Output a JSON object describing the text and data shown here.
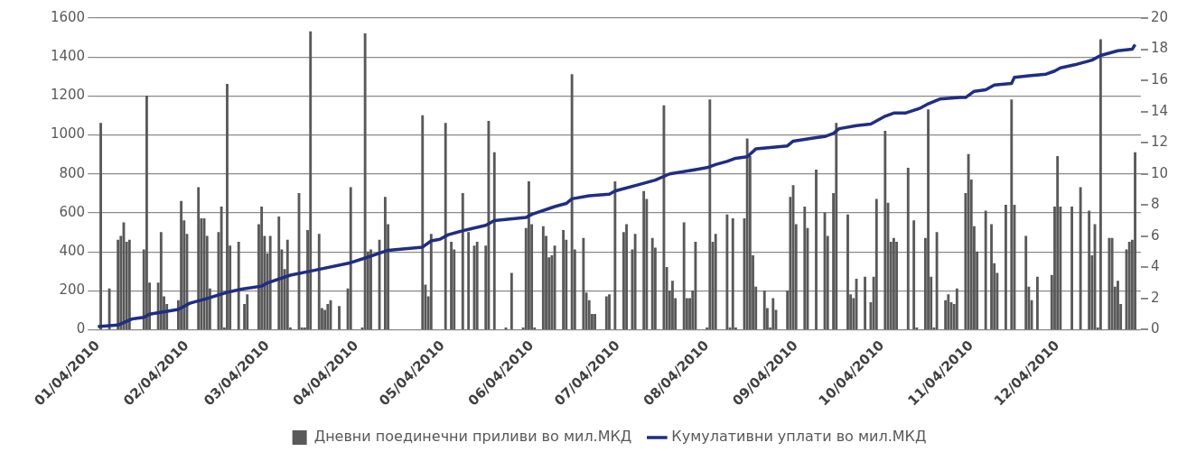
{
  "chart_data": {
    "type": "bar",
    "xlim": [
      "2010-01-03",
      "2011-01-02"
    ],
    "xticks": [
      {
        "value": "2010-01-04",
        "label": "01/04/2010"
      },
      {
        "value": "2010-02-04",
        "label": "02/04/2010"
      },
      {
        "value": "2010-03-04",
        "label": "03/04/2010"
      },
      {
        "value": "2010-04-04",
        "label": "04/04/2010"
      },
      {
        "value": "2010-05-04",
        "label": "05/04/2010"
      },
      {
        "value": "2010-06-04",
        "label": "06/04/2010"
      },
      {
        "value": "2010-07-04",
        "label": "07/04/2010"
      },
      {
        "value": "2010-08-04",
        "label": "08/04/2010"
      },
      {
        "value": "2010-09-04",
        "label": "09/04/2010"
      },
      {
        "value": "2010-10-04",
        "label": "10/04/2010"
      },
      {
        "value": "2010-11-04",
        "label": "11/04/2010"
      },
      {
        "value": "2010-12-04",
        "label": "12/04/2010"
      }
    ],
    "ylim": [
      0,
      1600
    ],
    "yticks": [
      0,
      200,
      400,
      600,
      800,
      1000,
      1200,
      1400,
      1600
    ],
    "y2lim": [
      0,
      20
    ],
    "y2ticks": [
      0,
      2,
      4,
      6,
      8,
      10,
      12,
      14,
      16,
      18,
      20
    ],
    "grid": "y",
    "legend": "bottom",
    "series": [
      {
        "name": "Дневни поединечни приливи во мил.МКД",
        "color": "#595959",
        "x": [
          "2010-01-05",
          "2010-01-08",
          "2010-01-11",
          "2010-01-12",
          "2010-01-13",
          "2010-01-14",
          "2010-01-15",
          "2010-01-20",
          "2010-01-21",
          "2010-01-22",
          "2010-01-25",
          "2010-01-26",
          "2010-01-27",
          "2010-01-28",
          "2010-02-01",
          "2010-02-02",
          "2010-02-03",
          "2010-02-04",
          "2010-02-08",
          "2010-02-09",
          "2010-02-10",
          "2010-02-11",
          "2010-02-12",
          "2010-02-15",
          "2010-02-16",
          "2010-02-17",
          "2010-02-18",
          "2010-02-19",
          "2010-02-22",
          "2010-02-24",
          "2010-02-25",
          "2010-03-01",
          "2010-03-02",
          "2010-03-03",
          "2010-03-04",
          "2010-03-05",
          "2010-03-08",
          "2010-03-09",
          "2010-03-10",
          "2010-03-11",
          "2010-03-12",
          "2010-03-15",
          "2010-03-16",
          "2010-03-17",
          "2010-03-18",
          "2010-03-19",
          "2010-03-22",
          "2010-03-23",
          "2010-03-24",
          "2010-03-25",
          "2010-03-26",
          "2010-03-29",
          "2010-04-01",
          "2010-04-02",
          "2010-04-06",
          "2010-04-07",
          "2010-04-08",
          "2010-04-09",
          "2010-04-12",
          "2010-04-14",
          "2010-04-15",
          "2010-04-27",
          "2010-04-28",
          "2010-04-29",
          "2010-04-30",
          "2010-05-05",
          "2010-05-07",
          "2010-05-08",
          "2010-05-11",
          "2010-05-13",
          "2010-05-15",
          "2010-05-16",
          "2010-05-19",
          "2010-05-20",
          "2010-05-22",
          "2010-05-26",
          "2010-05-28",
          "2010-06-01",
          "2010-06-02",
          "2010-06-03",
          "2010-06-04",
          "2010-06-05",
          "2010-06-08",
          "2010-06-09",
          "2010-06-10",
          "2010-06-11",
          "2010-06-12",
          "2010-06-15",
          "2010-06-16",
          "2010-06-18",
          "2010-06-19",
          "2010-06-22",
          "2010-06-23",
          "2010-06-24",
          "2010-06-25",
          "2010-06-26",
          "2010-06-30",
          "2010-07-01",
          "2010-07-03",
          "2010-07-06",
          "2010-07-07",
          "2010-07-09",
          "2010-07-10",
          "2010-07-13",
          "2010-07-14",
          "2010-07-16",
          "2010-07-17",
          "2010-07-20",
          "2010-07-21",
          "2010-07-22",
          "2010-07-23",
          "2010-07-24",
          "2010-07-27",
          "2010-07-28",
          "2010-07-29",
          "2010-07-30",
          "2010-07-31",
          "2010-08-04",
          "2010-08-05",
          "2010-08-06",
          "2010-08-07",
          "2010-08-11",
          "2010-08-12",
          "2010-08-13",
          "2010-08-14",
          "2010-08-17",
          "2010-08-18",
          "2010-08-19",
          "2010-08-20",
          "2010-08-21",
          "2010-08-24",
          "2010-08-25",
          "2010-08-26",
          "2010-08-27",
          "2010-08-28",
          "2010-09-01",
          "2010-09-02",
          "2010-09-03",
          "2010-09-04",
          "2010-09-07",
          "2010-09-08",
          "2010-09-11",
          "2010-09-14",
          "2010-09-15",
          "2010-09-17",
          "2010-09-18",
          "2010-09-22",
          "2010-09-23",
          "2010-09-24",
          "2010-09-25",
          "2010-09-28",
          "2010-09-30",
          "2010-10-01",
          "2010-10-02",
          "2010-10-05",
          "2010-10-06",
          "2010-10-07",
          "2010-10-08",
          "2010-10-09",
          "2010-10-13",
          "2010-10-15",
          "2010-10-16",
          "2010-10-19",
          "2010-10-20",
          "2010-10-21",
          "2010-10-22",
          "2010-10-23",
          "2010-10-26",
          "2010-10-27",
          "2010-10-28",
          "2010-10-29",
          "2010-10-30",
          "2010-11-02",
          "2010-11-03",
          "2010-11-04",
          "2010-11-05",
          "2010-11-06",
          "2010-11-09",
          "2010-11-11",
          "2010-11-12",
          "2010-11-13",
          "2010-11-16",
          "2010-11-18",
          "2010-11-19",
          "2010-11-23",
          "2010-11-24",
          "2010-11-25",
          "2010-11-27",
          "2010-12-02",
          "2010-12-03",
          "2010-12-04",
          "2010-12-05",
          "2010-12-09",
          "2010-12-12",
          "2010-12-15",
          "2010-12-16",
          "2010-12-17",
          "2010-12-18",
          "2010-12-19",
          "2010-12-22",
          "2010-12-23",
          "2010-12-24",
          "2010-12-25",
          "2010-12-26",
          "2010-12-28",
          "2010-12-29",
          "2010-12-30",
          "2010-12-31"
        ],
        "values": [
          1060,
          210,
          460,
          480,
          550,
          450,
          460,
          410,
          1200,
          240,
          240,
          500,
          170,
          130,
          150,
          660,
          560,
          490,
          730,
          570,
          570,
          480,
          210,
          500,
          630,
          10,
          1260,
          430,
          450,
          130,
          180,
          540,
          630,
          480,
          390,
          480,
          580,
          410,
          310,
          460,
          10,
          700,
          10,
          10,
          510,
          1530,
          490,
          110,
          100,
          130,
          150,
          120,
          210,
          730,
          10,
          1520,
          400,
          410,
          460,
          680,
          540,
          1100,
          230,
          170,
          490,
          1060,
          450,
          410,
          700,
          500,
          430,
          450,
          430,
          1070,
          910,
          10,
          290,
          10,
          520,
          760,
          540,
          10,
          530,
          480,
          370,
          380,
          430,
          510,
          460,
          1310,
          410,
          470,
          190,
          150,
          80,
          80,
          170,
          180,
          760,
          500,
          540,
          410,
          490,
          710,
          670,
          470,
          420,
          1150,
          320,
          200,
          250,
          160,
          550,
          160,
          160,
          200,
          450,
          10,
          1180,
          450,
          490,
          590,
          10,
          570,
          10,
          570,
          980,
          890,
          380,
          220,
          200,
          110,
          10,
          160,
          100,
          200,
          680,
          740,
          540,
          630,
          520,
          820,
          600,
          480,
          700,
          1060,
          590,
          180,
          160,
          260,
          270,
          140,
          270,
          670,
          1020,
          650,
          450,
          470,
          450,
          830,
          560,
          10,
          470,
          1130,
          270,
          10,
          500,
          150,
          180,
          140,
          130,
          210,
          700,
          900,
          770,
          530,
          400,
          610,
          540,
          340,
          290,
          640,
          1180,
          640,
          480,
          220,
          150,
          270,
          280,
          630,
          890,
          630,
          630,
          730,
          610,
          380,
          540,
          10,
          1490,
          470,
          470,
          220,
          250,
          130,
          410,
          450,
          460,
          910
        ]
      },
      {
        "name": "Кумулативни уплати во мил.МКД",
        "type": "line",
        "axis": "y2",
        "color": "#1f2e84",
        "x": [
          "2010-01-04",
          "2010-01-11",
          "2010-01-16",
          "2010-01-20",
          "2010-01-22",
          "2010-02-01",
          "2010-02-05",
          "2010-02-11",
          "2010-02-18",
          "2010-02-23",
          "2010-03-02",
          "2010-03-04",
          "2010-03-12",
          "2010-03-20",
          "2010-04-02",
          "2010-04-07",
          "2010-04-15",
          "2010-04-27",
          "2010-04-30",
          "2010-05-03",
          "2010-05-06",
          "2010-05-12",
          "2010-05-19",
          "2010-05-22",
          "2010-06-02",
          "2010-06-04",
          "2010-06-12",
          "2010-06-16",
          "2010-06-18",
          "2010-06-24",
          "2010-07-01",
          "2010-07-03",
          "2010-07-05",
          "2010-07-11",
          "2010-07-17",
          "2010-07-22",
          "2010-08-01",
          "2010-08-04",
          "2010-08-07",
          "2010-08-11",
          "2010-08-14",
          "2010-08-18",
          "2010-08-21",
          "2010-09-01",
          "2010-09-03",
          "2010-09-10",
          "2010-09-14",
          "2010-09-17",
          "2010-09-19",
          "2010-09-25",
          "2010-09-30",
          "2010-10-05",
          "2010-10-08",
          "2010-10-12",
          "2010-10-17",
          "2010-10-20",
          "2010-10-24",
          "2010-10-31",
          "2010-11-02",
          "2010-11-05",
          "2010-11-09",
          "2010-11-12",
          "2010-11-18",
          "2010-11-19",
          "2010-11-24",
          "2010-11-30",
          "2010-12-03",
          "2010-12-05",
          "2010-12-10",
          "2010-12-16",
          "2010-12-19",
          "2010-12-25",
          "2010-12-30",
          "2010-12-31"
        ],
        "values": [
          0.2,
          0.3,
          0.7,
          0.8,
          1.0,
          1.3,
          1.7,
          2.0,
          2.4,
          2.6,
          2.8,
          3.0,
          3.5,
          3.8,
          4.3,
          4.6,
          5.1,
          5.3,
          5.7,
          5.8,
          6.1,
          6.4,
          6.7,
          7.0,
          7.2,
          7.4,
          7.9,
          8.1,
          8.4,
          8.6,
          8.7,
          8.9,
          9.0,
          9.3,
          9.6,
          10.0,
          10.3,
          10.4,
          10.6,
          10.8,
          11.0,
          11.1,
          11.6,
          11.8,
          12.1,
          12.3,
          12.4,
          12.6,
          12.9,
          13.1,
          13.2,
          13.7,
          13.9,
          13.9,
          14.2,
          14.5,
          14.8,
          14.9,
          14.9,
          15.3,
          15.4,
          15.7,
          15.8,
          16.2,
          16.3,
          16.4,
          16.6,
          16.8,
          17.0,
          17.3,
          17.6,
          17.9,
          18.0,
          18.3
        ]
      }
    ]
  }
}
